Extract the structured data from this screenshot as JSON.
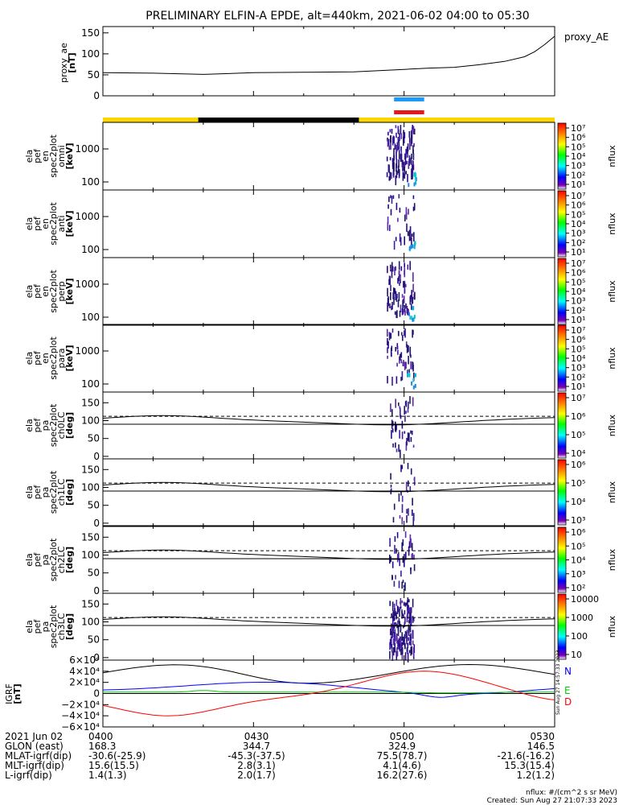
{
  "chart_data": {
    "type": "spectrogram",
    "title": "PRELIMINARY ELFIN-A EPDE, alt=440km, 2021-06-02 04:00 to 05:30",
    "time_ticks": [
      "0400",
      "0430",
      "0500",
      "0530"
    ],
    "ae": {
      "label": [
        "proxy_ae",
        "[nT]"
      ],
      "legend": "proxy_AE",
      "yticks": [
        "150",
        "100",
        "50",
        "0"
      ],
      "ylim": [
        0,
        150
      ],
      "time_min": [
        0,
        10,
        20,
        25,
        30,
        40,
        50,
        55,
        60,
        65,
        70,
        75,
        80,
        84,
        86,
        88,
        90
      ],
      "values": [
        55,
        54,
        51,
        53,
        55,
        56,
        57,
        60,
        63,
        66,
        68,
        74,
        82,
        93,
        105,
        122,
        142
      ]
    },
    "bars": {
      "blue_bar": "#1a9cff",
      "red_bar": "#e61919"
    },
    "energy_panels": [
      {
        "label": [
          "ela",
          "pef",
          "en",
          "spec2plot",
          "omni",
          "[keV]"
        ],
        "yticks": [
          "1000",
          "100"
        ],
        "cbar": [
          "10⁷",
          "10⁶",
          "10⁵",
          "10⁴",
          "10³",
          "10²",
          "10¹"
        ],
        "cbar_label": "nflux"
      },
      {
        "label": [
          "ela",
          "pef",
          "en",
          "spec2plot",
          "anti",
          "[keV]"
        ],
        "yticks": [
          "1000",
          "100"
        ],
        "cbar": [
          "10⁷",
          "10⁶",
          "10⁵",
          "10⁴",
          "10³",
          "10²",
          "10¹"
        ],
        "cbar_label": "nflux"
      },
      {
        "label": [
          "ela",
          "pef",
          "en",
          "spec2plot",
          "perp",
          "[keV]"
        ],
        "yticks": [
          "1000",
          "100"
        ],
        "cbar": [
          "10⁷",
          "10⁶",
          "10⁵",
          "10⁴",
          "10³",
          "10²",
          "10¹"
        ],
        "cbar_label": "nflux"
      },
      {
        "label": [
          "ela",
          "pef",
          "en",
          "spec2plot",
          "para",
          "[keV]"
        ],
        "yticks": [
          "1000",
          "100"
        ],
        "cbar": [
          "10⁷",
          "10⁶",
          "10⁵",
          "10⁴",
          "10³",
          "10²",
          "10¹"
        ],
        "cbar_label": "nflux"
      }
    ],
    "pa_panels": [
      {
        "label": [
          "ela",
          "pef",
          "pa",
          "spec2plot",
          "ch0LC",
          "[deg]"
        ],
        "yticks": [
          "150",
          "100",
          "50",
          "0"
        ],
        "cbar": [
          "10⁷",
          "10⁶",
          "10⁵",
          "10⁴"
        ],
        "cbar_label": "nflux"
      },
      {
        "label": [
          "ela",
          "pef",
          "pa",
          "spec2plot",
          "ch1LC",
          "[deg]"
        ],
        "yticks": [
          "150",
          "100",
          "50",
          "0"
        ],
        "cbar": [
          "10⁶",
          "10⁵",
          "10⁴",
          "10³"
        ],
        "cbar_label": "nflux"
      },
      {
        "label": [
          "ela",
          "pef",
          "pa",
          "spec2plot",
          "ch2LC",
          "[deg]"
        ],
        "yticks": [
          "150",
          "100",
          "50",
          "0"
        ],
        "cbar": [
          "10⁶",
          "10⁵",
          "10⁴",
          "10³",
          "10²"
        ],
        "cbar_label": "nflux"
      },
      {
        "label": [
          "ela",
          "pef",
          "pa",
          "spec2plot",
          "ch3LC",
          "[deg]"
        ],
        "yticks": [
          "150",
          "100",
          "50",
          "0"
        ],
        "cbar": [
          "10000",
          "1000",
          "100",
          "10"
        ],
        "cbar_label": "nflux"
      }
    ],
    "igrf": {
      "label": [
        "IGRF",
        "[nT]"
      ],
      "yticks": [
        "6×10⁴",
        "4×10⁴",
        "2×10⁴",
        "0",
        "−2×10⁴",
        "−4×10⁴",
        "−6×10⁴"
      ],
      "ylim": [
        -60000,
        60000
      ],
      "legend": [
        {
          "name": "N",
          "color": "#0000ff"
        },
        {
          "name": "E",
          "color": "#00cc00"
        },
        {
          "name": "D",
          "color": "#ff0000"
        }
      ],
      "side_text": "Sun Aug 27 14:57:33 2023"
    },
    "footer": {
      "rows": [
        {
          "label": "2021 Jun 02",
          "values": [
            "0400",
            "0430",
            "0500",
            "0530"
          ]
        },
        {
          "label": "GLON (east)",
          "values": [
            "168.3",
            "344.7",
            "324.9",
            "146.5"
          ]
        },
        {
          "label": "MLAT-igrf(dip)",
          "values": [
            "-30.6(-25.9)",
            "-45.3(-37.5)",
            "75.5(78.7)",
            "-21.6(-16.2)"
          ]
        },
        {
          "label": "MLT-igrf(dip)",
          "values": [
            "15.6(15.5)",
            "2.8(3.1)",
            "4.1(4.6)",
            "15.3(15.4)"
          ]
        },
        {
          "label": "L-igrf(dip)",
          "values": [
            "1.4(1.3)",
            "2.0(1.7)",
            "16.2(27.6)",
            "1.2(1.2)"
          ]
        }
      ],
      "units": "nflux: #/(cm^2 s sr MeV)",
      "created": "Created: Sun Aug 27 21:07:33 2023"
    }
  }
}
